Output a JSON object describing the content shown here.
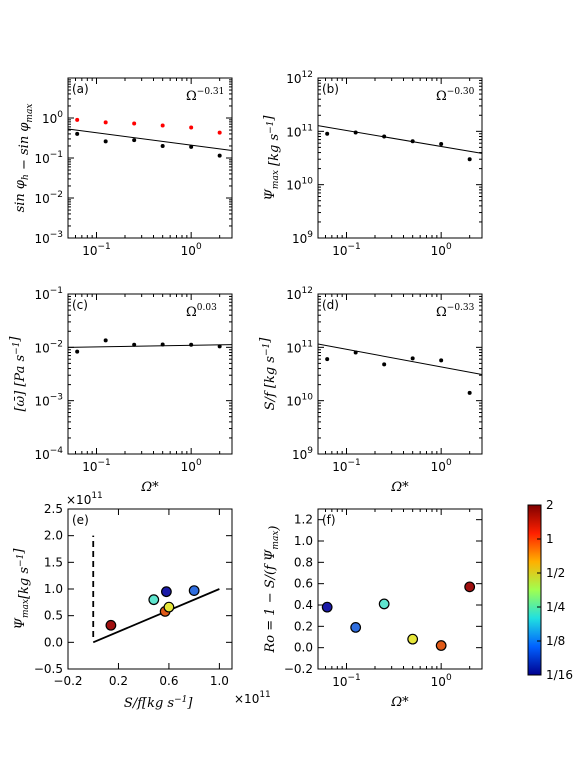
{
  "chart_data": [
    {
      "id": "a",
      "type": "scatter",
      "panel_label": "(a)",
      "xscale": "log",
      "yscale": "log",
      "xlim": [
        0.05,
        2.7
      ],
      "ylim": [
        0.001,
        10
      ],
      "xticks": [
        "10^-1",
        "10^0"
      ],
      "yticks": [
        "10^-3",
        "10^-2",
        "10^-1",
        "10^0"
      ],
      "ylabel": "sin φ_h − sin φ_max",
      "annotation": {
        "base": "Ω",
        "exp": "−0.31"
      },
      "series": [
        {
          "color": "#000000",
          "x": [
            0.0625,
            0.125,
            0.25,
            0.5,
            1,
            2
          ],
          "y": [
            0.4,
            0.26,
            0.28,
            0.2,
            0.19,
            0.115
          ]
        },
        {
          "color": "#ff0000",
          "x": [
            0.0625,
            0.125,
            0.25,
            0.5,
            1,
            2
          ],
          "y": [
            0.9,
            0.78,
            0.73,
            0.65,
            0.58,
            0.43
          ]
        }
      ],
      "fit": {
        "coef": 0.21,
        "exp": -0.31
      }
    },
    {
      "id": "b",
      "type": "scatter",
      "panel_label": "(b)",
      "xscale": "log",
      "yscale": "log",
      "xlim": [
        0.05,
        2.7
      ],
      "ylim": [
        1000000000.0,
        1000000000000.0
      ],
      "xticks": [
        "10^-1",
        "10^0"
      ],
      "yticks": [
        "10^9",
        "10^10",
        "10^11",
        "10^12"
      ],
      "ylabel": "Ψ_max [kg s^-1]",
      "annotation": {
        "base": "Ω",
        "exp": "−0.30"
      },
      "series": [
        {
          "color": "#000000",
          "x": [
            0.0625,
            0.125,
            0.25,
            0.5,
            1,
            2
          ],
          "y": [
            90000000000.0,
            95000000000.0,
            80000000000.0,
            65000000000.0,
            58000000000.0,
            30000000000.0
          ]
        }
      ],
      "fit": {
        "coef": 52000000000.0,
        "exp": -0.3
      }
    },
    {
      "id": "c",
      "type": "scatter",
      "panel_label": "(c)",
      "xscale": "log",
      "yscale": "log",
      "xlim": [
        0.05,
        2.7
      ],
      "ylim": [
        0.0001,
        0.1
      ],
      "xticks": [
        "10^-1",
        "10^0"
      ],
      "yticks": [
        "10^-4",
        "10^-3",
        "10^-2",
        "10^-1"
      ],
      "xlabel": "Ω*",
      "ylabel": "[ω̄] [Pa s^-1]",
      "annotation": {
        "base": "Ω",
        "exp": "0.03"
      },
      "series": [
        {
          "color": "#000000",
          "x": [
            0.0625,
            0.125,
            0.25,
            0.5,
            1,
            2
          ],
          "y": [
            0.0083,
            0.0135,
            0.0112,
            0.0113,
            0.0112,
            0.0104
          ]
        }
      ],
      "fit": {
        "coef": 0.0109,
        "exp": 0.03
      }
    },
    {
      "id": "d",
      "type": "scatter",
      "panel_label": "(d)",
      "xscale": "log",
      "yscale": "log",
      "xlim": [
        0.05,
        2.7
      ],
      "ylim": [
        1000000000.0,
        1000000000000.0
      ],
      "xticks": [
        "10^-1",
        "10^0"
      ],
      "yticks": [
        "10^9",
        "10^10",
        "10^11",
        "10^12"
      ],
      "xlabel": "Ω*",
      "ylabel": "S/f [kg s^-1]",
      "annotation": {
        "base": "Ω",
        "exp": "−0.33"
      },
      "series": [
        {
          "color": "#000000",
          "x": [
            0.0625,
            0.125,
            0.25,
            0.5,
            1,
            2
          ],
          "y": [
            60000000000.0,
            80000000000.0,
            48000000000.0,
            62000000000.0,
            57000000000.0,
            14000000000.0
          ]
        }
      ],
      "fit": {
        "coef": 43000000000.0,
        "exp": -0.33
      }
    },
    {
      "id": "e",
      "type": "scatter",
      "panel_label": "(e)",
      "xscale": "linear",
      "yscale": "linear",
      "xlim": [
        -0.2,
        1.1
      ],
      "ylim": [
        -0.5,
        2.5
      ],
      "xticks": [
        "−0.2",
        "0.2",
        "0.6",
        "1.0"
      ],
      "xtick_values": [
        -0.2,
        0.2,
        0.6,
        1.0
      ],
      "yticks": [
        "−0.5",
        "0.0",
        "0.5",
        "1.0",
        "1.5",
        "2.0",
        "2.5"
      ],
      "ytick_values": [
        -0.5,
        0,
        0.5,
        1.0,
        1.5,
        2.0,
        2.5
      ],
      "xlabel": "S/f[kg s^-1]",
      "ylabel": "Ψ_max[kg s^-1]",
      "x_multiplier": "×10^11",
      "y_multiplier": "×10^11",
      "points": [
        {
          "x": 0.14,
          "y": 0.32,
          "color": "#a01010"
        },
        {
          "x": 0.48,
          "y": 0.8,
          "color": "#5fe6cf"
        },
        {
          "x": 0.57,
          "y": 0.58,
          "color": "#e05a18"
        },
        {
          "x": 0.6,
          "y": 0.66,
          "color": "#e6e63a"
        },
        {
          "x": 0.58,
          "y": 0.95,
          "color": "#1a1aa8"
        },
        {
          "x": 0.8,
          "y": 0.97,
          "color": "#2f6ee0"
        }
      ],
      "line": {
        "x": [
          0,
          1.0
        ],
        "y": [
          0,
          1.0
        ]
      },
      "dashed_line": {
        "x": [
          0,
          0
        ],
        "y": [
          0.1,
          2.0
        ]
      }
    },
    {
      "id": "f",
      "type": "scatter",
      "panel_label": "(f)",
      "xscale": "log",
      "yscale": "linear",
      "xlim": [
        0.05,
        2.7
      ],
      "ylim": [
        -0.2,
        1.3
      ],
      "xticks": [
        "10^-1",
        "10^0"
      ],
      "yticks": [
        "−0.2",
        "0.0",
        "0.2",
        "0.4",
        "0.6",
        "0.8",
        "1.0",
        "1.2"
      ],
      "ytick_values": [
        -0.2,
        0,
        0.2,
        0.4,
        0.6,
        0.8,
        1.0,
        1.2
      ],
      "xlabel": "Ω*",
      "ylabel": "Ro = 1 − S/(f Ψ_max)",
      "points": [
        {
          "x": 0.0625,
          "y": 0.38,
          "color": "#1a1aa8"
        },
        {
          "x": 0.125,
          "y": 0.19,
          "color": "#2f6ee0"
        },
        {
          "x": 0.25,
          "y": 0.41,
          "color": "#5fe6cf"
        },
        {
          "x": 0.5,
          "y": 0.08,
          "color": "#e6e63a"
        },
        {
          "x": 1,
          "y": 0.02,
          "color": "#e05a18"
        },
        {
          "x": 2,
          "y": 0.57,
          "color": "#a01010"
        }
      ],
      "colorbar": {
        "labels": [
          "2",
          "1",
          "1/2",
          "1/4",
          "1/8",
          "1/16"
        ],
        "colors": [
          "#7f0000",
          "#ff2000",
          "#ffb000",
          "#a0ff50",
          "#20e0e0",
          "#0060ff",
          "#00008f"
        ]
      }
    }
  ]
}
